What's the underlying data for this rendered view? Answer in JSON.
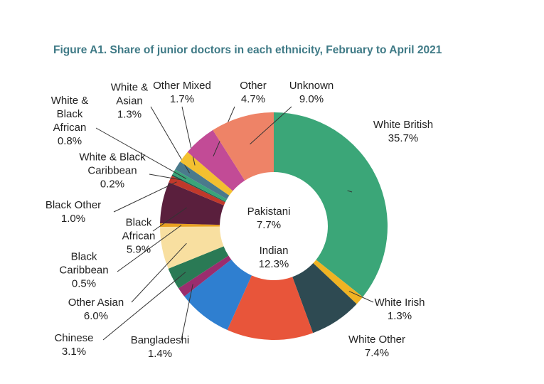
{
  "chart_data": {
    "type": "donut",
    "title": "Figure A1. Share of junior doctors in each ethnicity, February to April 2021",
    "categories": [
      "White British",
      "White Irish",
      "White Other",
      "Indian",
      "Pakistani",
      "Bangladeshi",
      "Chinese",
      "Other Asian",
      "Black Caribbean",
      "Black African",
      "Black Other",
      "White & Black Caribbean",
      "White & Black African",
      "White & Asian",
      "Other Mixed",
      "Other",
      "Unknown"
    ],
    "values": [
      35.7,
      1.3,
      7.4,
      12.3,
      7.7,
      1.4,
      3.1,
      6.0,
      0.5,
      5.9,
      1.0,
      0.2,
      0.8,
      1.3,
      1.7,
      4.7,
      9.0
    ],
    "value_labels": [
      "35.7%",
      "1.3%",
      "7.4%",
      "12.3%",
      "7.7%",
      "1.4%",
      "3.1%",
      "6.0%",
      "0.5%",
      "5.9%",
      "1.0%",
      "0.2%",
      "0.8%",
      "1.3%",
      "1.7%",
      "4.7%",
      "9.0%"
    ],
    "colors": [
      "#3ba678",
      "#f0b323",
      "#2e4a52",
      "#e8553a",
      "#2f7fd0",
      "#9b2d6e",
      "#2a7a55",
      "#f8dfa0",
      "#e8a020",
      "#5a1f3d",
      "#c0392b",
      "#1a5c4a",
      "#3aa57a",
      "#4a7a8c",
      "#f3c030",
      "#c24b96",
      "#ee8367"
    ]
  }
}
